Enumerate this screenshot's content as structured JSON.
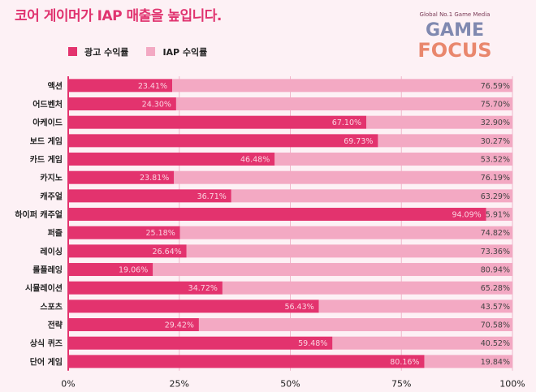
{
  "title": "코어 게이머가 IAP 매출을 높입니다.",
  "colors": {
    "ad": "#e3336e",
    "iap": "#f3a9c3",
    "title": "#e0336f"
  },
  "chart_data": {
    "type": "bar",
    "orientation": "horizontal",
    "stacked": true,
    "title": "코어 게이머가 IAP 매출을 높입니다.",
    "categories": [
      "액션",
      "어드벤처",
      "아케이드",
      "보드 게임",
      "카드 게임",
      "카지노",
      "캐주얼",
      "하이퍼 캐주얼",
      "퍼즐",
      "레이싱",
      "롤플레잉",
      "시뮬레이션",
      "스포츠",
      "전략",
      "상식 퀴즈",
      "단어 게임"
    ],
    "series": [
      {
        "name": "광고 수익률",
        "values": [
          23.41,
          24.3,
          67.1,
          69.73,
          46.48,
          23.81,
          36.71,
          94.09,
          25.18,
          26.64,
          19.06,
          34.72,
          56.43,
          29.42,
          59.48,
          80.16
        ]
      },
      {
        "name": "IAP 수익률",
        "values": [
          76.59,
          75.7,
          32.9,
          30.27,
          53.52,
          76.19,
          63.29,
          5.91,
          74.82,
          73.36,
          80.94,
          65.28,
          43.57,
          70.58,
          40.52,
          19.84
        ]
      }
    ],
    "xlim": [
      0,
      100
    ],
    "xticks": [
      "0%",
      "25%",
      "50%",
      "75%",
      "100%"
    ],
    "legend": "top-left",
    "grid": true
  },
  "watermark": {
    "tagline": "Global No.1 Game Media",
    "line1": "GAME",
    "line2": "FOCUS"
  }
}
